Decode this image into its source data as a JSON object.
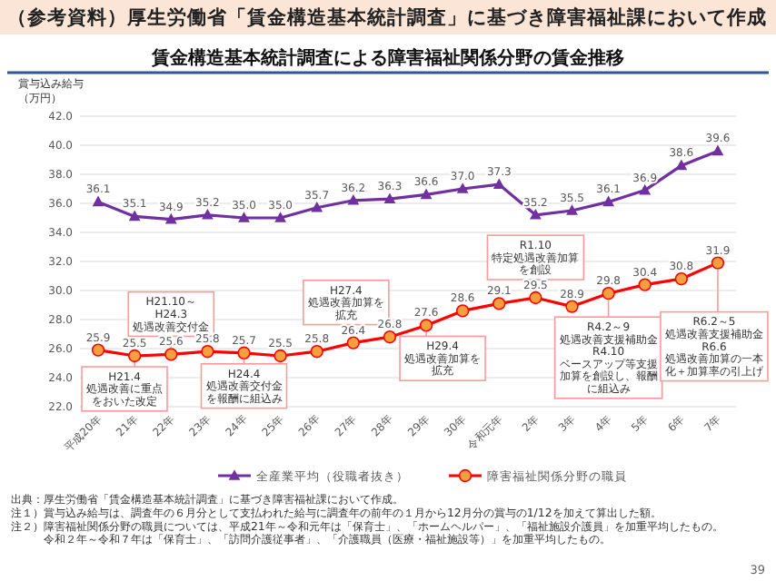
{
  "chart_data": {
    "type": "line",
    "title": "賃金構造基本統計調査による障害福祉関係分野の賃金推移",
    "subtitle": "（参考資料）厚生労働省「賃金構造基本統計調査」に基づき障害福祉課において作成",
    "ylabel": "賞与込み給与（万円）",
    "categories": [
      "平成20年",
      "21年",
      "22年",
      "23年",
      "24年",
      "25年",
      "26年",
      "27年",
      "28年",
      "29年",
      "30年",
      "令和元年",
      "2年",
      "3年",
      "4年",
      "5年",
      "6年",
      "7年"
    ],
    "series": [
      {
        "name": "全産業平均（役職者抜き）",
        "color": "#7030a0",
        "marker": "triangle",
        "values": [
          36.1,
          35.1,
          34.9,
          35.2,
          35.0,
          35.0,
          35.7,
          36.2,
          36.3,
          36.6,
          37.0,
          37.3,
          35.2,
          35.5,
          36.1,
          36.9,
          38.6,
          39.6
        ],
        "value_labels": [
          "36.1",
          "35.1",
          "34.9",
          "35.2",
          "35.0",
          "35.0",
          "35.7",
          "36.2",
          "36.3",
          "36.6",
          "37.0",
          "37.3",
          "35.2",
          "35.5",
          "36.1",
          "36.9",
          "38.6",
          "39.6"
        ]
      },
      {
        "name": "障害福祉関係分野の職員",
        "color": "#ff0000",
        "marker": "circle",
        "values": [
          25.9,
          25.5,
          25.6,
          25.8,
          25.7,
          25.5,
          25.8,
          26.4,
          26.8,
          27.6,
          28.6,
          29.1,
          29.5,
          28.9,
          29.8,
          30.4,
          30.8,
          31.9
        ],
        "value_labels": [
          "25.9",
          "25.5",
          "25.6",
          "25.8",
          "25.7",
          "25.5",
          "25.8",
          "26.4",
          "26.8",
          "27.6",
          "28.6",
          "29.1",
          "29.5",
          "28.9",
          "29.8",
          "30.4",
          "30.8",
          "31.9"
        ]
      }
    ],
    "ylim": [
      22,
      42
    ],
    "yticks": [
      {
        "value": 22,
        "label": "22.0"
      },
      {
        "value": 24,
        "label": "24.0"
      },
      {
        "value": 26,
        "label": "26.0"
      },
      {
        "value": 28,
        "label": "28.0"
      },
      {
        "value": 30,
        "label": "30.0"
      },
      {
        "value": 32,
        "label": "32.0"
      },
      {
        "value": 34,
        "label": "34.0"
      },
      {
        "value": 36,
        "label": "36.0"
      },
      {
        "value": 38,
        "label": "38.0"
      },
      {
        "value": 40,
        "label": "40.0"
      },
      {
        "value": 42,
        "label": "42.0"
      }
    ],
    "grid": "y",
    "legend": "bottom",
    "line_style": "solid",
    "annotations": [
      {
        "text": "H21.4\n処遇改善に重点をおいた改定",
        "x": "21年",
        "y": 25.5
      },
      {
        "text": "H21.10～H24.3\n処遇改善交付金",
        "x": "22年",
        "y": 25.6
      },
      {
        "text": "H24.4\n処遇改善交付金を報酬に組込み",
        "x": "24年",
        "y": 25.7
      },
      {
        "text": "H27.4\n処遇改善加算を拡充",
        "x": "27年",
        "y": 26.4
      },
      {
        "text": "H29.4\n処遇改善加算を拡充",
        "x": "29年",
        "y": 27.6
      },
      {
        "text": "R1.10\n特定処遇改善加算を創設",
        "x": "2年",
        "y": 29.5
      },
      {
        "text": "R4.2～9\n処遇改善支援補助金\nR4.10\nベースアップ等支援加算を創設し、報酬に組込み",
        "x": "4年",
        "y": 29.8
      },
      {
        "text": "R6.2～5\n処遇改善支援補助金\nR6.6\n処遇改善加算の一本化＋加算率の引上げ",
        "x": "7年",
        "y": 31.9
      },
      "出典：厚生労働省「賃金構造基本統計調査」に基づき障害福祉課において作成。",
      "注１）賞与込み給与は、調査年の６月分として支払われた給与に調査年の前年の１月から12月分の賞与の1/12を加えて算出した額。",
      "注２）障害福祉関係分野の職員については、平成21年～令和元年は「保育士」、「ホームヘルパー」、「福祉施設介護員」を加重平均したもの。",
      "令和２年～令和７年は「保育士」、「訪問介護従事者」、「介護職員（医療・福祉施設等）」を加重平均したもの。",
      "39"
    ]
  }
}
